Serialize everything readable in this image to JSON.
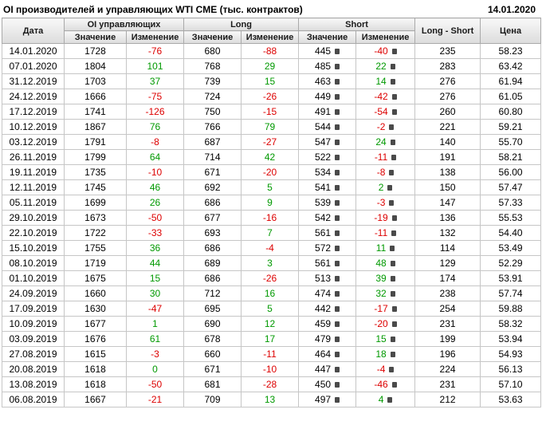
{
  "header": {
    "title": "OI производителей и управляющих WTI CME (тыс. контрактов)",
    "date": "14.01.2020"
  },
  "colors": {
    "positive": "#009900",
    "negative": "#dd0000",
    "grid": "#c6c6c6",
    "header_bg": "#e3e3e3"
  },
  "table": {
    "group_headers": {
      "date": "Дата",
      "oi": "OI управляющих",
      "long": "Long",
      "short": "Short",
      "long_short": "Long - Short",
      "price": "Цена"
    },
    "sub_headers": {
      "value": "Значение",
      "change": "Изменение"
    }
  },
  "icons": {
    "mini_indicator": "small dark square marker in Short value/change cells"
  },
  "chart_data": {
    "type": "table",
    "title": "OI производителей и управляющих WTI CME (тыс. контрактов)",
    "as_of_date": "14.01.2020",
    "column_groups": [
      "Дата",
      "OI управляющих",
      "Long",
      "Short",
      "Long - Short",
      "Цена"
    ],
    "columns": [
      "Дата",
      "OI управляющих Значение",
      "OI управляющих Изменение",
      "Long Значение",
      "Long Изменение",
      "Short Значение",
      "Short Изменение",
      "Long - Short",
      "Цена"
    ],
    "rows": [
      [
        "14.01.2020",
        "1728",
        "-76",
        "680",
        "-88",
        "445",
        "-40",
        "235",
        "58.23"
      ],
      [
        "07.01.2020",
        "1804",
        "101",
        "768",
        "29",
        "485",
        "22",
        "283",
        "63.42"
      ],
      [
        "31.12.2019",
        "1703",
        "37",
        "739",
        "15",
        "463",
        "14",
        "276",
        "61.94"
      ],
      [
        "24.12.2019",
        "1666",
        "-75",
        "724",
        "-26",
        "449",
        "-42",
        "276",
        "61.05"
      ],
      [
        "17.12.2019",
        "1741",
        "-126",
        "750",
        "-15",
        "491",
        "-54",
        "260",
        "60.80"
      ],
      [
        "10.12.2019",
        "1867",
        "76",
        "766",
        "79",
        "544",
        "-2",
        "221",
        "59.21"
      ],
      [
        "03.12.2019",
        "1791",
        "-8",
        "687",
        "-27",
        "547",
        "24",
        "140",
        "55.70"
      ],
      [
        "26.11.2019",
        "1799",
        "64",
        "714",
        "42",
        "522",
        "-11",
        "191",
        "58.21"
      ],
      [
        "19.11.2019",
        "1735",
        "-10",
        "671",
        "-20",
        "534",
        "-8",
        "138",
        "56.00"
      ],
      [
        "12.11.2019",
        "1745",
        "46",
        "692",
        "5",
        "541",
        "2",
        "150",
        "57.47"
      ],
      [
        "05.11.2019",
        "1699",
        "26",
        "686",
        "9",
        "539",
        "-3",
        "147",
        "57.33"
      ],
      [
        "29.10.2019",
        "1673",
        "-50",
        "677",
        "-16",
        "542",
        "-19",
        "136",
        "55.53"
      ],
      [
        "22.10.2019",
        "1722",
        "-33",
        "693",
        "7",
        "561",
        "-11",
        "132",
        "54.40"
      ],
      [
        "15.10.2019",
        "1755",
        "36",
        "686",
        "-4",
        "572",
        "11",
        "114",
        "53.49"
      ],
      [
        "08.10.2019",
        "1719",
        "44",
        "689",
        "3",
        "561",
        "48",
        "129",
        "52.29"
      ],
      [
        "01.10.2019",
        "1675",
        "15",
        "686",
        "-26",
        "513",
        "39",
        "174",
        "53.91"
      ],
      [
        "24.09.2019",
        "1660",
        "30",
        "712",
        "16",
        "474",
        "32",
        "238",
        "57.74"
      ],
      [
        "17.09.2019",
        "1630",
        "-47",
        "695",
        "5",
        "442",
        "-17",
        "254",
        "59.88"
      ],
      [
        "10.09.2019",
        "1677",
        "1",
        "690",
        "12",
        "459",
        "-20",
        "231",
        "58.32"
      ],
      [
        "03.09.2019",
        "1676",
        "61",
        "678",
        "17",
        "479",
        "15",
        "199",
        "53.94"
      ],
      [
        "27.08.2019",
        "1615",
        "-3",
        "660",
        "-11",
        "464",
        "18",
        "196",
        "54.93"
      ],
      [
        "20.08.2019",
        "1618",
        "0",
        "671",
        "-10",
        "447",
        "-4",
        "224",
        "56.13"
      ],
      [
        "13.08.2019",
        "1618",
        "-50",
        "681",
        "-28",
        "450",
        "-46",
        "231",
        "57.10"
      ],
      [
        "06.08.2019",
        "1667",
        "-21",
        "709",
        "13",
        "497",
        "4",
        "212",
        "53.63"
      ]
    ]
  }
}
